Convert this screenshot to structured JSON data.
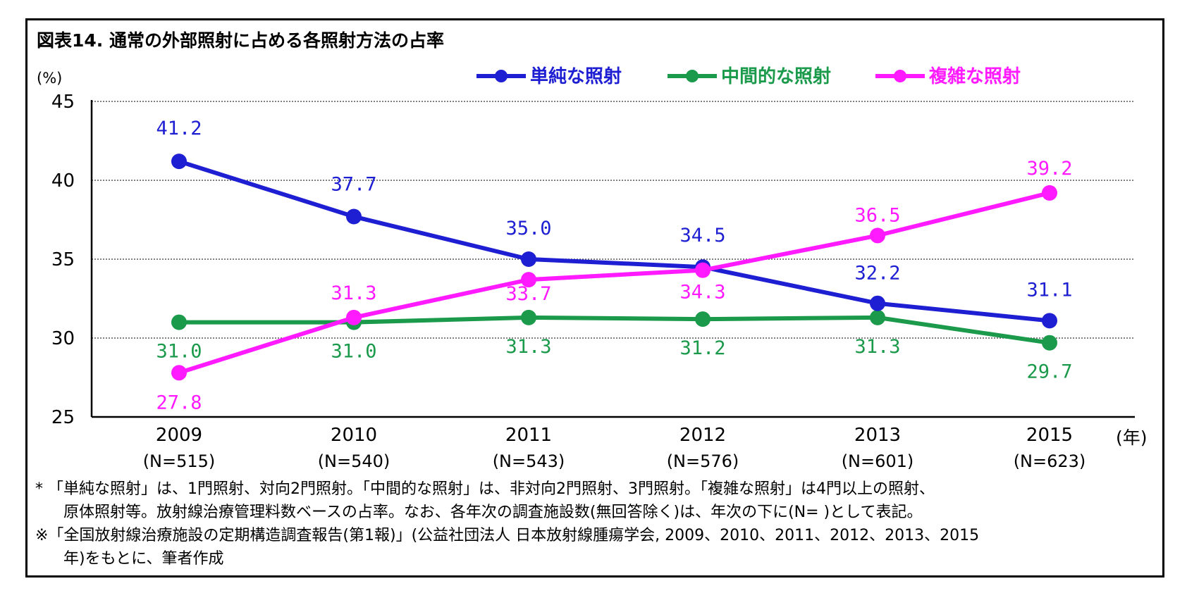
{
  "title": "図表14. 通常の外部照射に占める各照射方法の占率",
  "chart_data": {
    "type": "line",
    "title": "図表14. 通常の外部照射に占める各照射方法の占率",
    "ylabel": "(%)",
    "xlabel": "(年)",
    "ylim": [
      25,
      45
    ],
    "yticks": [
      25,
      30,
      35,
      40,
      45
    ],
    "grid": true,
    "legend": "top-center",
    "categories": [
      "2009",
      "2010",
      "2011",
      "2012",
      "2013",
      "2015"
    ],
    "sublabels": [
      "(N=515)",
      "(N=540)",
      "(N=543)",
      "(N=576)",
      "(N=601)",
      "(N=623)"
    ],
    "series": [
      {
        "name": "単純な照射",
        "color": "#1e1ed2",
        "values": [
          41.2,
          37.7,
          35.0,
          34.5,
          32.2,
          31.1
        ],
        "labels": [
          "41.2",
          "37.7",
          "35.0",
          "34.5",
          "32.2",
          "31.1"
        ]
      },
      {
        "name": "中間的な照射",
        "color": "#1a9a4a",
        "values": [
          31.0,
          31.0,
          31.3,
          31.2,
          31.3,
          29.7
        ],
        "labels": [
          "31.0",
          "31.0",
          "31.3",
          "31.2",
          "31.3",
          "29.7"
        ]
      },
      {
        "name": "複雑な照射",
        "color": "#ff1aff",
        "values": [
          27.8,
          31.3,
          33.7,
          34.3,
          36.5,
          39.2
        ],
        "labels": [
          "27.8",
          "31.3",
          "33.7",
          "34.3",
          "36.5",
          "39.2"
        ]
      }
    ]
  },
  "notes": {
    "line1": "* 「単純な照射」は、1門照射、対向2門照射。「中間的な照射」は、非対向2門照射、3門照射。「複雑な照射」は4門以上の照射、",
    "line2": "原体照射等。放射線治療管理料数ベースの占率。なお、各年次の調査施設数(無回答除く)は、年次の下に(N= )として表記。",
    "line3": "※「全国放射線治療施設の定期構造調査報告(第1報)」(公益社団法人 日本放射線腫瘍学会, 2009、2010、2011、2012、2013、2015",
    "line4": "年)をもとに、筆者作成"
  }
}
